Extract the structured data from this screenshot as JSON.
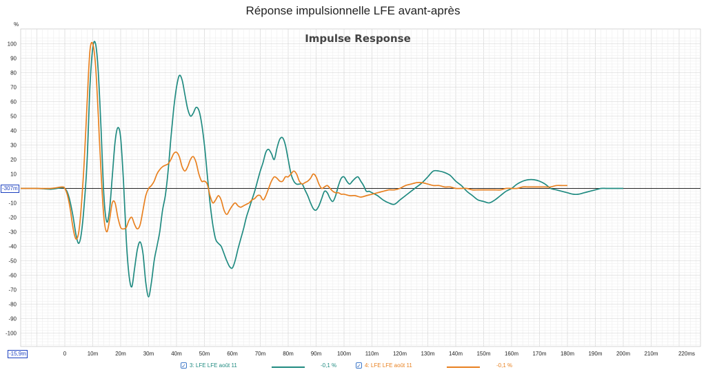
{
  "page": {
    "title": "Réponse impulsionnelle LFE avant-après"
  },
  "chart_data": {
    "type": "line",
    "title": "Impulse Response",
    "ylabel": "%",
    "xlabel": "ms",
    "xlim": [
      -15.9,
      226
    ],
    "ylim": [
      -110,
      105
    ],
    "grid": true,
    "x_ticks": [
      0,
      10,
      20,
      30,
      40,
      50,
      60,
      70,
      80,
      90,
      100,
      110,
      120,
      130,
      140,
      150,
      160,
      170,
      180,
      190,
      200,
      210
    ],
    "x_tick_labels": [
      "0",
      "10m",
      "20m",
      "30m",
      "40m",
      "50m",
      "60m",
      "70m",
      "80m",
      "90m",
      "100m",
      "110m",
      "120m",
      "130m",
      "140m",
      "150m",
      "160m",
      "170m",
      "180m",
      "190m",
      "200m",
      "210m"
    ],
    "x_end_label": "220ms",
    "y_ticks": [
      100,
      90,
      80,
      70,
      60,
      50,
      40,
      30,
      20,
      10,
      -10,
      -20,
      -30,
      -40,
      -50,
      -60,
      -70,
      -80,
      -90,
      -100
    ],
    "y_tick_labels": [
      "100",
      "90",
      "80",
      "70",
      "60",
      "50",
      "40",
      "30",
      "20",
      "10",
      "-10",
      "-20",
      "-30",
      "-40",
      "-50",
      "-60",
      "-70",
      "-80",
      "-90",
      "-100"
    ],
    "x_marker_label": "-15,9m",
    "y_marker_label": "-307m",
    "series": [
      {
        "name": "3: LFE LFE août 11",
        "value_label": "-0,1 %",
        "color": "#1f8a80",
        "points": [
          [
            -15.9,
            0
          ],
          [
            -10,
            0
          ],
          [
            -5,
            -0.5
          ],
          [
            -1,
            0.5
          ],
          [
            0,
            0
          ],
          [
            1,
            -3
          ],
          [
            2,
            -10
          ],
          [
            3,
            -20
          ],
          [
            4,
            -32
          ],
          [
            5,
            -38
          ],
          [
            6,
            -30
          ],
          [
            7,
            -10
          ],
          [
            8,
            20
          ],
          [
            9,
            70
          ],
          [
            10,
            97
          ],
          [
            11,
            100
          ],
          [
            12,
            80
          ],
          [
            13,
            40
          ],
          [
            14,
            -5
          ],
          [
            15,
            -23
          ],
          [
            16,
            -15
          ],
          [
            17,
            8
          ],
          [
            18,
            32
          ],
          [
            19,
            42
          ],
          [
            20,
            35
          ],
          [
            21,
            5
          ],
          [
            22,
            -35
          ],
          [
            23,
            -60
          ],
          [
            24,
            -68
          ],
          [
            25,
            -55
          ],
          [
            26,
            -42
          ],
          [
            27,
            -37
          ],
          [
            28,
            -45
          ],
          [
            29,
            -65
          ],
          [
            30,
            -75
          ],
          [
            31,
            -65
          ],
          [
            32,
            -50
          ],
          [
            33,
            -40
          ],
          [
            34,
            -30
          ],
          [
            35,
            -15
          ],
          [
            36,
            -5
          ],
          [
            37,
            12
          ],
          [
            38,
            35
          ],
          [
            39,
            55
          ],
          [
            40,
            70
          ],
          [
            41,
            78
          ],
          [
            42,
            75
          ],
          [
            43,
            65
          ],
          [
            44,
            55
          ],
          [
            45,
            50
          ],
          [
            46,
            52
          ],
          [
            47,
            56
          ],
          [
            48,
            54
          ],
          [
            49,
            45
          ],
          [
            50,
            30
          ],
          [
            51,
            10
          ],
          [
            52,
            -10
          ],
          [
            53,
            -25
          ],
          [
            54,
            -35
          ],
          [
            55,
            -38
          ],
          [
            56,
            -40
          ],
          [
            57,
            -45
          ],
          [
            58,
            -50
          ],
          [
            59,
            -54
          ],
          [
            60,
            -55
          ],
          [
            61,
            -50
          ],
          [
            62,
            -42
          ],
          [
            63,
            -35
          ],
          [
            64,
            -28
          ],
          [
            65,
            -20
          ],
          [
            66,
            -14
          ],
          [
            67,
            -8
          ],
          [
            68,
            -2
          ],
          [
            69,
            5
          ],
          [
            70,
            12
          ],
          [
            71,
            18
          ],
          [
            72,
            25
          ],
          [
            73,
            27
          ],
          [
            74,
            24
          ],
          [
            75,
            20
          ],
          [
            76,
            28
          ],
          [
            77,
            34
          ],
          [
            78,
            35
          ],
          [
            79,
            30
          ],
          [
            80,
            20
          ],
          [
            81,
            10
          ],
          [
            82,
            5
          ],
          [
            83,
            3
          ],
          [
            84,
            3
          ],
          [
            85,
            3
          ],
          [
            86,
            -1
          ],
          [
            87,
            -5
          ],
          [
            88,
            -10
          ],
          [
            89,
            -14
          ],
          [
            90,
            -15
          ],
          [
            91,
            -12
          ],
          [
            92,
            -7
          ],
          [
            93,
            -2
          ],
          [
            94,
            -3
          ],
          [
            95,
            -7
          ],
          [
            96,
            -9
          ],
          [
            97,
            -5
          ],
          [
            98,
            2
          ],
          [
            99,
            7
          ],
          [
            100,
            8
          ],
          [
            101,
            5
          ],
          [
            102,
            3
          ],
          [
            103,
            5
          ],
          [
            104,
            7
          ],
          [
            105,
            8
          ],
          [
            106,
            5
          ],
          [
            107,
            2
          ],
          [
            108,
            -2
          ],
          [
            109,
            -2
          ],
          [
            110,
            -3
          ],
          [
            112,
            -5
          ],
          [
            114,
            -8
          ],
          [
            116,
            -10
          ],
          [
            118,
            -11
          ],
          [
            120,
            -8
          ],
          [
            122,
            -5
          ],
          [
            124,
            -2
          ],
          [
            126,
            1
          ],
          [
            128,
            4
          ],
          [
            130,
            8
          ],
          [
            132,
            12
          ],
          [
            134,
            12
          ],
          [
            136,
            11
          ],
          [
            138,
            9
          ],
          [
            140,
            5
          ],
          [
            142,
            2
          ],
          [
            144,
            -2
          ],
          [
            146,
            -5
          ],
          [
            148,
            -8
          ],
          [
            150,
            -9
          ],
          [
            152,
            -10
          ],
          [
            154,
            -8
          ],
          [
            156,
            -5
          ],
          [
            158,
            -2
          ],
          [
            160,
            0
          ],
          [
            162,
            3
          ],
          [
            164,
            5
          ],
          [
            166,
            6
          ],
          [
            168,
            6
          ],
          [
            170,
            5
          ],
          [
            172,
            3
          ],
          [
            174,
            0
          ],
          [
            176,
            -1
          ],
          [
            178,
            -2
          ],
          [
            180,
            -3
          ],
          [
            182,
            -4
          ],
          [
            184,
            -4
          ],
          [
            186,
            -3
          ],
          [
            188,
            -2
          ],
          [
            190,
            -1
          ],
          [
            192,
            0
          ],
          [
            194,
            0
          ],
          [
            196,
            0
          ],
          [
            198,
            0
          ],
          [
            200,
            0
          ]
        ]
      },
      {
        "name": "4: LFE LFE août 11",
        "value_label": "-0,1 %",
        "color": "#e8801f",
        "points": [
          [
            -15.9,
            0
          ],
          [
            -10,
            0
          ],
          [
            -5,
            0
          ],
          [
            -1,
            1
          ],
          [
            0,
            0
          ],
          [
            1,
            -5
          ],
          [
            2,
            -15
          ],
          [
            3,
            -28
          ],
          [
            4,
            -35
          ],
          [
            5,
            -30
          ],
          [
            6,
            -10
          ],
          [
            7,
            20
          ],
          [
            8,
            60
          ],
          [
            9,
            95
          ],
          [
            10,
            100
          ],
          [
            11,
            85
          ],
          [
            12,
            50
          ],
          [
            13,
            10
          ],
          [
            14,
            -20
          ],
          [
            15,
            -30
          ],
          [
            16,
            -22
          ],
          [
            17,
            -10
          ],
          [
            18,
            -10
          ],
          [
            19,
            -20
          ],
          [
            20,
            -27
          ],
          [
            21,
            -28
          ],
          [
            22,
            -27
          ],
          [
            23,
            -22
          ],
          [
            24,
            -20
          ],
          [
            25,
            -25
          ],
          [
            26,
            -28
          ],
          [
            27,
            -25
          ],
          [
            28,
            -15
          ],
          [
            29,
            -5
          ],
          [
            30,
            0
          ],
          [
            31,
            2
          ],
          [
            32,
            5
          ],
          [
            33,
            10
          ],
          [
            34,
            13
          ],
          [
            35,
            15
          ],
          [
            36,
            16
          ],
          [
            37,
            17
          ],
          [
            38,
            20
          ],
          [
            39,
            24
          ],
          [
            40,
            25
          ],
          [
            41,
            22
          ],
          [
            42,
            15
          ],
          [
            43,
            12
          ],
          [
            44,
            15
          ],
          [
            45,
            20
          ],
          [
            46,
            22
          ],
          [
            47,
            18
          ],
          [
            48,
            10
          ],
          [
            49,
            5
          ],
          [
            50,
            5
          ],
          [
            51,
            3
          ],
          [
            52,
            -5
          ],
          [
            53,
            -10
          ],
          [
            54,
            -8
          ],
          [
            55,
            -5
          ],
          [
            56,
            -8
          ],
          [
            57,
            -15
          ],
          [
            58,
            -18
          ],
          [
            59,
            -15
          ],
          [
            60,
            -12
          ],
          [
            61,
            -10
          ],
          [
            62,
            -12
          ],
          [
            63,
            -13
          ],
          [
            64,
            -12
          ],
          [
            65,
            -11
          ],
          [
            66,
            -10
          ],
          [
            67,
            -8
          ],
          [
            68,
            -7
          ],
          [
            69,
            -5
          ],
          [
            70,
            -5
          ],
          [
            71,
            -8
          ],
          [
            72,
            -5
          ],
          [
            73,
            0
          ],
          [
            74,
            5
          ],
          [
            75,
            8
          ],
          [
            76,
            7
          ],
          [
            77,
            5
          ],
          [
            78,
            5
          ],
          [
            79,
            8
          ],
          [
            80,
            8
          ],
          [
            81,
            10
          ],
          [
            82,
            12
          ],
          [
            83,
            10
          ],
          [
            84,
            5
          ],
          [
            85,
            3
          ],
          [
            86,
            4
          ],
          [
            87,
            5
          ],
          [
            88,
            7
          ],
          [
            89,
            10
          ],
          [
            90,
            8
          ],
          [
            91,
            3
          ],
          [
            92,
            0
          ],
          [
            93,
            1
          ],
          [
            94,
            2
          ],
          [
            95,
            0
          ],
          [
            96,
            -2
          ],
          [
            97,
            -3
          ],
          [
            98,
            -3
          ],
          [
            99,
            -4
          ],
          [
            100,
            -4
          ],
          [
            102,
            -5
          ],
          [
            104,
            -5
          ],
          [
            106,
            -6
          ],
          [
            108,
            -5
          ],
          [
            110,
            -4
          ],
          [
            112,
            -3
          ],
          [
            114,
            -2
          ],
          [
            116,
            -1
          ],
          [
            118,
            -1
          ],
          [
            120,
            0
          ],
          [
            122,
            2
          ],
          [
            124,
            3
          ],
          [
            126,
            4
          ],
          [
            128,
            4
          ],
          [
            130,
            3
          ],
          [
            132,
            2
          ],
          [
            134,
            2
          ],
          [
            136,
            1
          ],
          [
            138,
            1
          ],
          [
            140,
            0
          ],
          [
            142,
            0
          ],
          [
            144,
            0
          ],
          [
            146,
            -1
          ],
          [
            148,
            -1
          ],
          [
            150,
            -1
          ],
          [
            152,
            -1
          ],
          [
            154,
            -1
          ],
          [
            156,
            -1
          ],
          [
            158,
            0
          ],
          [
            160,
            0
          ],
          [
            162,
            0
          ],
          [
            164,
            1
          ],
          [
            166,
            1
          ],
          [
            168,
            1
          ],
          [
            170,
            1
          ],
          [
            172,
            1
          ],
          [
            174,
            1
          ],
          [
            176,
            2
          ],
          [
            178,
            2
          ],
          [
            180,
            2
          ]
        ]
      }
    ]
  }
}
